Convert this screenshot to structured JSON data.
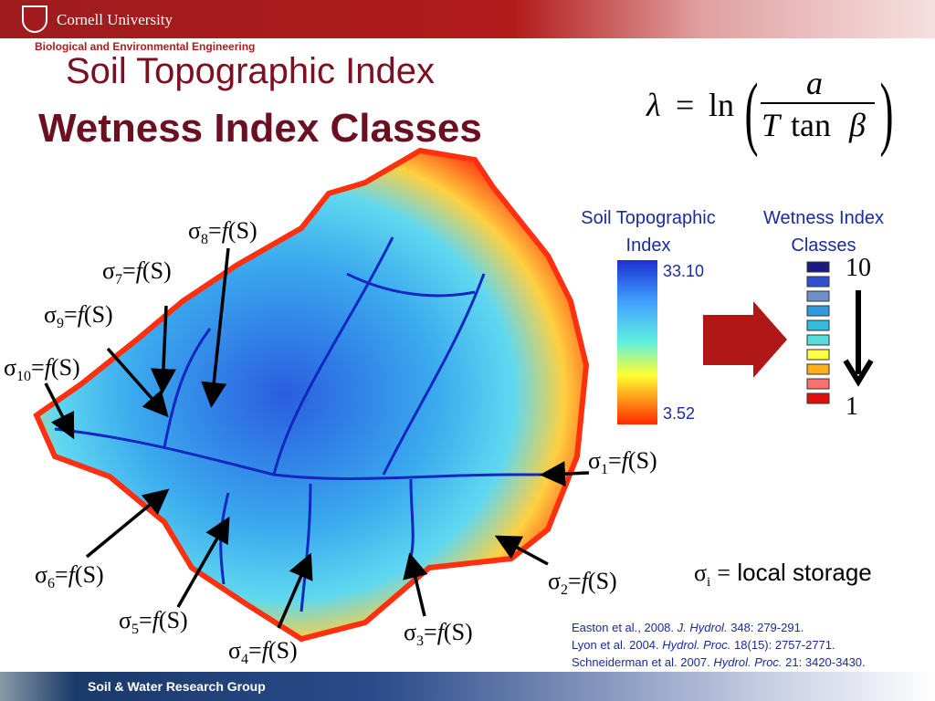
{
  "header": {
    "university": "Cornell University",
    "department": "Biological and Environmental Engineering"
  },
  "title": {
    "line1": "Soil Topographic Index",
    "line2": "Wetness Index Classes"
  },
  "formula": {
    "lambda": "λ",
    "eq": "=",
    "ln": "ln",
    "numerator": "a",
    "T": "T",
    "tan": "tan",
    "beta": "β"
  },
  "legend": {
    "sti_title": "Soil Topographic Index",
    "sti_max": "33.10",
    "sti_min": "3.52",
    "classes_title": "Wetness Index Classes",
    "class_top": "10",
    "class_bottom": "1",
    "class_colors": [
      "#1a1a80",
      "#3050d0",
      "#7090c8",
      "#3399dd",
      "#33bbdd",
      "#55dddd",
      "#ffff44",
      "#ffb020",
      "#ff7070",
      "#dd1010"
    ]
  },
  "sigma_labels": [
    {
      "symbol": "σ",
      "sub": "1",
      "eq": "=",
      "fn": "f",
      "arg": "(S)"
    },
    {
      "symbol": "σ",
      "sub": "2",
      "eq": "=",
      "fn": "f",
      "arg": "(S)"
    },
    {
      "symbol": "σ",
      "sub": "3",
      "eq": "=",
      "fn": "f",
      "arg": "(S)"
    },
    {
      "symbol": "σ",
      "sub": "4",
      "eq": "=",
      "fn": "f",
      "arg": "(S)"
    },
    {
      "symbol": "σ",
      "sub": "5",
      "eq": "=",
      "fn": "f",
      "arg": "(S)"
    },
    {
      "symbol": "σ",
      "sub": "6",
      "eq": "=",
      "fn": "f",
      "arg": "(S)"
    },
    {
      "symbol": "σ",
      "sub": "7",
      "eq": "=",
      "fn": "f",
      "arg": "(S)"
    },
    {
      "symbol": "σ",
      "sub": "8",
      "eq": "=",
      "fn": "f",
      "arg": "(S)"
    },
    {
      "symbol": "σ",
      "sub": "9",
      "eq": "=",
      "fn": "f",
      "arg": "(S)"
    },
    {
      "symbol": "σ",
      "sub": "10",
      "eq": "=",
      "fn": "f",
      "arg": "(S)"
    }
  ],
  "storage_note": {
    "symbol": "σ",
    "sub": "i",
    "eq": "=",
    "text": "local storage"
  },
  "references": [
    {
      "authors": "Easton et al., 2008.",
      "journal": "J. Hydrol.",
      "details": "348: 279-291."
    },
    {
      "authors": "Lyon et al. 2004.",
      "journal": "Hydrol. Proc.",
      "details": "18(15): 2757-2771."
    },
    {
      "authors": "Schneiderman et al. 2007.",
      "journal": "Hydrol. Proc.",
      "details": "21: 3420-3430."
    }
  ],
  "footer": {
    "text": "Soil & Water Research Group"
  }
}
